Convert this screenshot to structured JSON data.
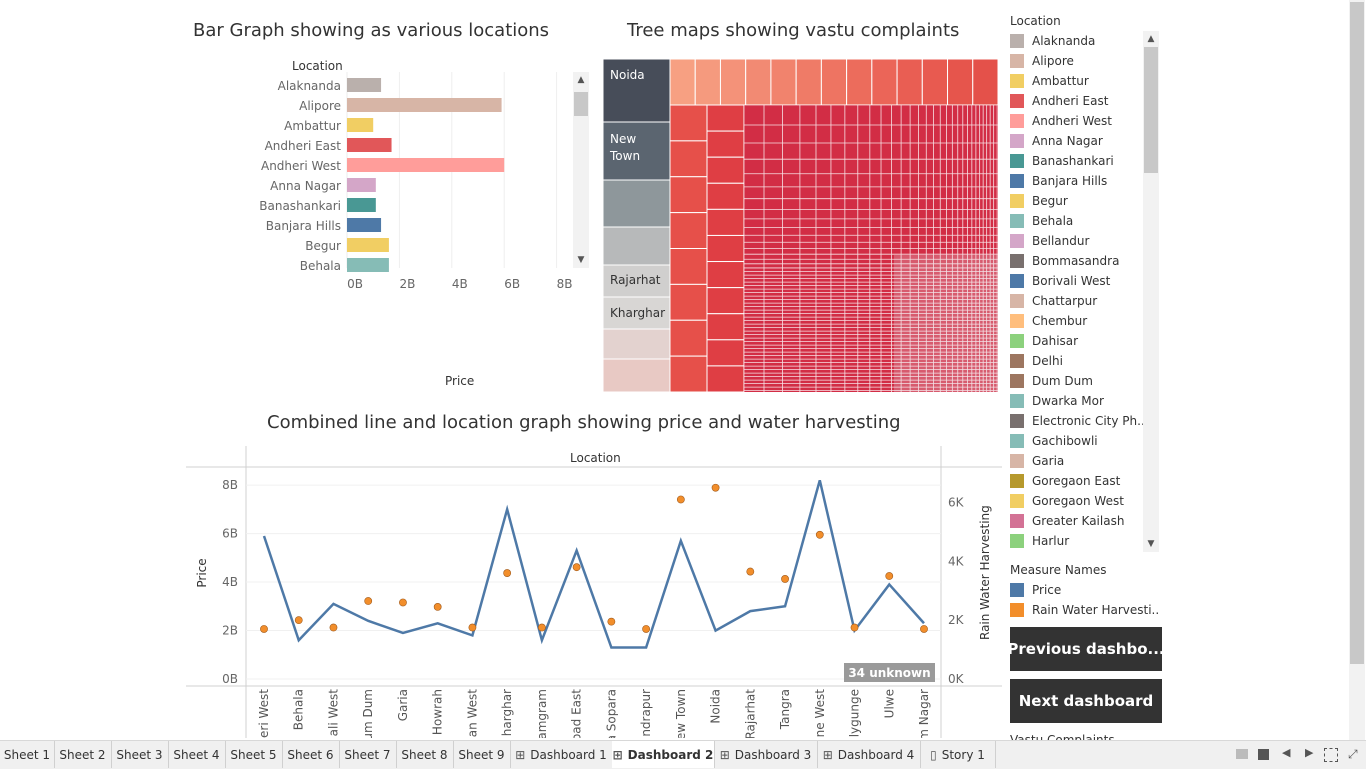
{
  "bar_chart": {
    "title": "Bar Graph showing as various locations",
    "header": "Location",
    "xlabel": "Price",
    "chart_data": {
      "type": "bar",
      "orientation": "horizontal",
      "categories": [
        "Alaknanda",
        "Alipore",
        "Ambattur",
        "Andheri East",
        "Andheri West",
        "Anna Nagar",
        "Banashankari",
        "Banjara Hills",
        "Begur",
        "Behala"
      ],
      "values": [
        1.3,
        5.9,
        1.0,
        1.7,
        6.0,
        1.1,
        1.1,
        1.3,
        1.6,
        1.6
      ],
      "colors": [
        "#bab0ac",
        "#d7b5a6",
        "#f1ce63",
        "#e15759",
        "#ff9d9a",
        "#d4a6c8",
        "#499894",
        "#4e79a7",
        "#f1ce63",
        "#86bcb6"
      ],
      "xlim": [
        0,
        8
      ],
      "ticks": [
        "0B",
        "2B",
        "4B",
        "6B",
        "8B"
      ],
      "tick_values": [
        0,
        2,
        4,
        6,
        8
      ]
    }
  },
  "treemap": {
    "title": "Tree maps showing vastu complaints",
    "labels": [
      "Noida",
      "New\nTown",
      "Rajarhat",
      "Kharghar"
    ]
  },
  "combo_chart": {
    "title": "Combined line and location graph showing price and water harvesting",
    "header": "Location",
    "ylabel_left": "Price",
    "ylabel_right": "Rain Water Harvesting",
    "unknown_badge": "34 unknown",
    "chart_data": {
      "type": "line",
      "categories": [
        "eri West",
        "Behala",
        "ali West",
        "um Dum",
        "Garia",
        "Howrah",
        "an West",
        "harghar",
        "amgram",
        "oad East",
        "a Sopara",
        "ndrapur",
        "ew Town",
        "Noida",
        "Rajarhat",
        "Tangra",
        "ne West",
        "llygunge",
        "Ulwe",
        "m Nagar"
      ],
      "series": [
        {
          "name": "Price",
          "axis": "left",
          "color": "#4e79a7",
          "values": [
            5.9,
            1.6,
            3.1,
            2.4,
            1.9,
            2.3,
            1.8,
            7.0,
            1.6,
            5.3,
            1.3,
            1.3,
            5.7,
            2.0,
            2.8,
            3.0,
            8.2,
            2.0,
            3.9,
            2.3
          ]
        },
        {
          "name": "Rain Water Harvesting",
          "axis": "right",
          "color": "#f28e2b",
          "values": [
            1700,
            2000,
            1750,
            2650,
            2600,
            2450,
            1750,
            3600,
            1750,
            3800,
            1950,
            1700,
            6100,
            6500,
            3650,
            3400,
            4900,
            1750,
            3500,
            1700
          ]
        }
      ],
      "ylim_left": [
        0,
        8.5
      ],
      "ylim_right": [
        0,
        7000
      ],
      "left_ticks": [
        "0B",
        "2B",
        "4B",
        "6B",
        "8B"
      ],
      "left_tick_values": [
        0,
        2,
        4,
        6,
        8
      ],
      "right_ticks": [
        "0K",
        "2K",
        "4K",
        "6K"
      ],
      "right_tick_values": [
        0,
        2000,
        4000,
        6000
      ]
    }
  },
  "legend": {
    "title": "Location",
    "items": [
      {
        "label": "Alaknanda",
        "color": "#bab0ac"
      },
      {
        "label": "Alipore",
        "color": "#d7b5a6"
      },
      {
        "label": "Ambattur",
        "color": "#f1ce63"
      },
      {
        "label": "Andheri East",
        "color": "#e15759"
      },
      {
        "label": "Andheri West",
        "color": "#ff9d9a"
      },
      {
        "label": "Anna Nagar",
        "color": "#d4a6c8"
      },
      {
        "label": "Banashankari",
        "color": "#499894"
      },
      {
        "label": "Banjara Hills",
        "color": "#4e79a7"
      },
      {
        "label": "Begur",
        "color": "#f1ce63"
      },
      {
        "label": "Behala",
        "color": "#86bcb6"
      },
      {
        "label": "Bellandur",
        "color": "#d4a6c8"
      },
      {
        "label": "Bommasandra",
        "color": "#79706e"
      },
      {
        "label": "Borivali West",
        "color": "#4e79a7"
      },
      {
        "label": "Chattarpur",
        "color": "#d7b5a6"
      },
      {
        "label": "Chembur",
        "color": "#ffbe7d"
      },
      {
        "label": "Dahisar",
        "color": "#8cd17d"
      },
      {
        "label": "Delhi",
        "color": "#9d7660"
      },
      {
        "label": "Dum Dum",
        "color": "#9d7660"
      },
      {
        "label": "Dwarka Mor",
        "color": "#86bcb6"
      },
      {
        "label": "Electronic City Ph..",
        "color": "#79706e"
      },
      {
        "label": "Gachibowli",
        "color": "#86bcb6"
      },
      {
        "label": "Garia",
        "color": "#d7b5a6"
      },
      {
        "label": "Goregaon East",
        "color": "#b6992d"
      },
      {
        "label": "Goregaon West",
        "color": "#f1ce63"
      },
      {
        "label": "Greater Kailash",
        "color": "#d37295"
      },
      {
        "label": "Harlur",
        "color": "#8cd17d"
      }
    ],
    "measure_title": "Measure Names",
    "measures": [
      {
        "label": "Price",
        "color": "#4e79a7"
      },
      {
        "label": "Rain Water Harvesti..",
        "color": "#f28e2b"
      }
    ],
    "partial_title": "Vastu Complaints"
  },
  "buttons": {
    "previous": "Previous dashbo...",
    "next": "Next dashboard"
  },
  "tabs": [
    {
      "label": "Sheet 1",
      "icon": ""
    },
    {
      "label": "Sheet 2",
      "icon": ""
    },
    {
      "label": "Sheet 3",
      "icon": ""
    },
    {
      "label": "Sheet 4",
      "icon": ""
    },
    {
      "label": "Sheet 5",
      "icon": ""
    },
    {
      "label": "Sheet 6",
      "icon": ""
    },
    {
      "label": "Sheet 7",
      "icon": ""
    },
    {
      "label": "Sheet 8",
      "icon": ""
    },
    {
      "label": "Sheet 9",
      "icon": ""
    },
    {
      "label": "Dashboard 1",
      "icon": "dashboard-icon"
    },
    {
      "label": "Dashboard 2",
      "icon": "dashboard-icon",
      "active": true
    },
    {
      "label": "Dashboard 3",
      "icon": "dashboard-icon"
    },
    {
      "label": "Dashboard 4",
      "icon": "dashboard-icon"
    },
    {
      "label": "Story 1",
      "icon": "story-icon"
    }
  ]
}
